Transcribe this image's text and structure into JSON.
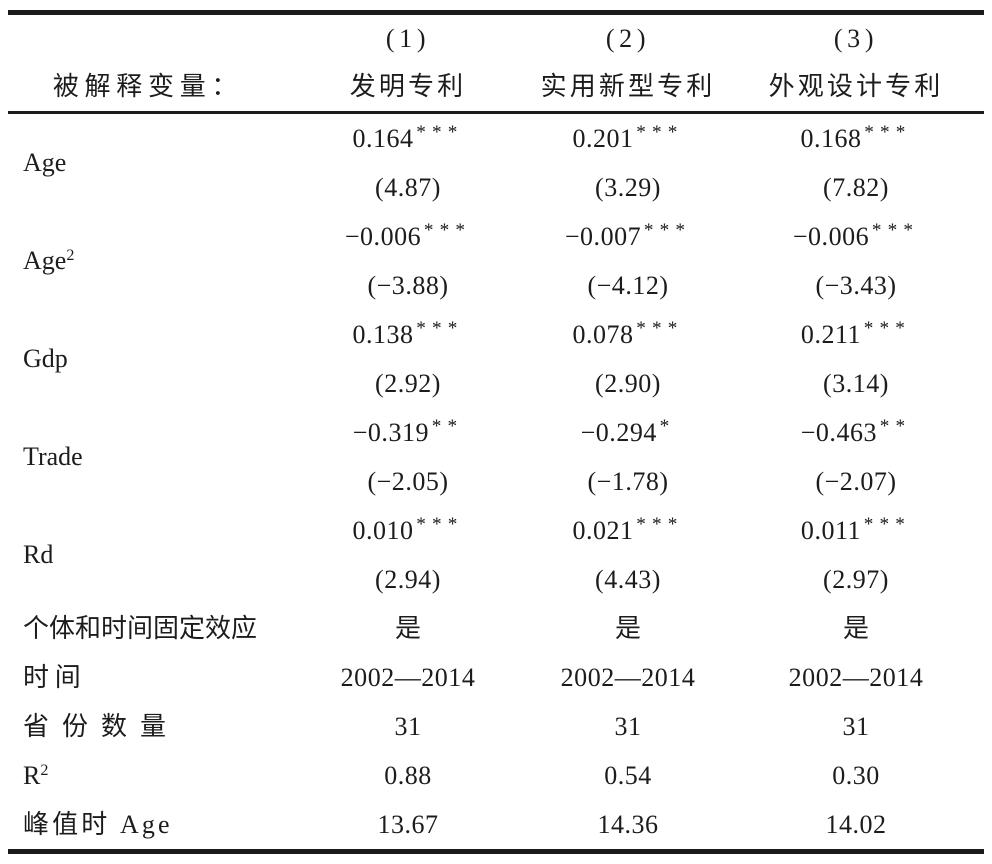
{
  "table": {
    "header": {
      "dep_var_label": "被解释变量：",
      "columns": [
        {
          "no": "(1)",
          "name": "发明专利"
        },
        {
          "no": "(2)",
          "name": "实用新型专利"
        },
        {
          "no": "(3)",
          "name": "外观设计专利"
        }
      ]
    },
    "variables": [
      {
        "label": "Age",
        "sup": "",
        "cells": [
          {
            "coef": "0.164",
            "stars": "***",
            "t": "(4.87)"
          },
          {
            "coef": "0.201",
            "stars": "***",
            "t": "(3.29)"
          },
          {
            "coef": "0.168",
            "stars": "***",
            "t": "(7.82)"
          }
        ]
      },
      {
        "label": "Age",
        "sup": "2",
        "cells": [
          {
            "coef": "−0.006",
            "stars": "***",
            "t": "(−3.88)"
          },
          {
            "coef": "−0.007",
            "stars": "***",
            "t": "(−4.12)"
          },
          {
            "coef": "−0.006",
            "stars": "***",
            "t": "(−3.43)"
          }
        ]
      },
      {
        "label": "Gdp",
        "sup": "",
        "cells": [
          {
            "coef": "0.138",
            "stars": "***",
            "t": "(2.92)"
          },
          {
            "coef": "0.078",
            "stars": "***",
            "t": "(2.90)"
          },
          {
            "coef": "0.211",
            "stars": "***",
            "t": "(3.14)"
          }
        ]
      },
      {
        "label": "Trade",
        "sup": "",
        "cells": [
          {
            "coef": "−0.319",
            "stars": "**",
            "t": "(−2.05)"
          },
          {
            "coef": "−0.294",
            "stars": "*",
            "t": "(−1.78)"
          },
          {
            "coef": "−0.463",
            "stars": "**",
            "t": "(−2.07)"
          }
        ]
      },
      {
        "label": "Rd",
        "sup": "",
        "cells": [
          {
            "coef": "0.010",
            "stars": "***",
            "t": "(2.94)"
          },
          {
            "coef": "0.021",
            "stars": "***",
            "t": "(4.43)"
          },
          {
            "coef": "0.011",
            "stars": "***",
            "t": "(2.97)"
          }
        ]
      }
    ],
    "summary_rows": [
      {
        "label": "个体和时间固定效应",
        "sup": "",
        "values": [
          "是",
          "是",
          "是"
        ]
      },
      {
        "label": "时间",
        "sup": "",
        "values": [
          "2002—2014",
          "2002—2014",
          "2002—2014"
        ]
      },
      {
        "label": "省份数量",
        "sup": "",
        "values": [
          "31",
          "31",
          "31"
        ]
      },
      {
        "label": "R",
        "sup": "2",
        "values": [
          "0.88",
          "0.54",
          "0.30"
        ]
      },
      {
        "label": "峰值时 Age",
        "sup": "",
        "values": [
          "13.67",
          "14.36",
          "14.02"
        ]
      }
    ]
  }
}
